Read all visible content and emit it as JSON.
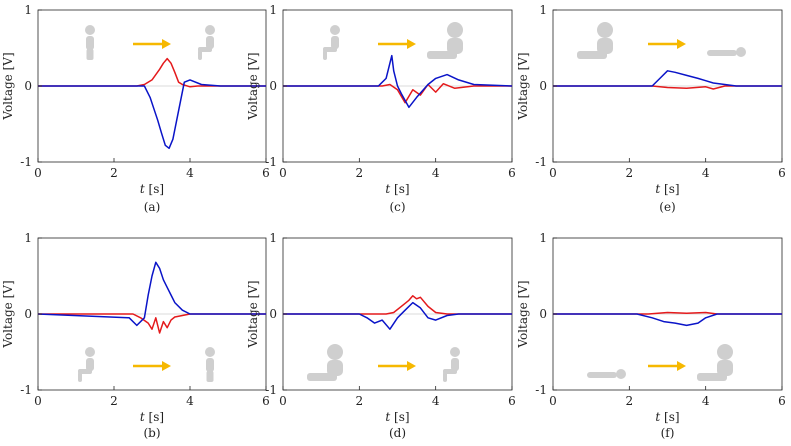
{
  "colors": {
    "series_a": "#e41a1c",
    "series_b": "#0a14c8",
    "arrow": "#f6b800",
    "figure": "#cfcfcf"
  },
  "chart_data": [
    {
      "type": "line",
      "panel": "a",
      "caption": "(a)",
      "xlabel": "t [s]",
      "ylabel": "Voltage [V]",
      "xlim": [
        0,
        6
      ],
      "ylim": [
        -1,
        1
      ],
      "xticks": [
        "0",
        "2",
        "4",
        "6"
      ],
      "yticks": [
        "-1",
        "0",
        "1"
      ],
      "grid": false,
      "illustration": {
        "from": "standing-figure",
        "to": "sitting-figure",
        "position": "top"
      },
      "series": [
        {
          "x": [
            0,
            2.6,
            2.8,
            3.0,
            3.2,
            3.3,
            3.4,
            3.5,
            3.6,
            3.7,
            3.8,
            4.0,
            4.2,
            4.6,
            6
          ],
          "values": [
            0,
            0,
            0.02,
            0.08,
            0.22,
            0.3,
            0.36,
            0.3,
            0.18,
            0.05,
            0.02,
            -0.01,
            0,
            0,
            0
          ]
        },
        {
          "x": [
            0,
            2.8,
            2.95,
            3.05,
            3.15,
            3.25,
            3.35,
            3.45,
            3.55,
            3.65,
            3.75,
            3.85,
            4.0,
            4.3,
            4.8,
            6
          ],
          "values": [
            0,
            0,
            -0.15,
            -0.3,
            -0.45,
            -0.62,
            -0.78,
            -0.82,
            -0.7,
            -0.45,
            -0.2,
            0.05,
            0.08,
            0.02,
            0,
            0
          ]
        }
      ]
    },
    {
      "type": "line",
      "panel": "b",
      "caption": "(b)",
      "xlabel": "t [s]",
      "ylabel": "Voltage [V]",
      "xlim": [
        0,
        6
      ],
      "ylim": [
        -1,
        1
      ],
      "xticks": [
        "0",
        "2",
        "4",
        "6"
      ],
      "yticks": [
        "-1",
        "0",
        "1"
      ],
      "grid": false,
      "illustration": {
        "from": "sitting-figure",
        "to": "standing-figure",
        "position": "bottom"
      },
      "series": [
        {
          "x": [
            0,
            2.5,
            2.7,
            2.9,
            3.0,
            3.1,
            3.2,
            3.3,
            3.4,
            3.5,
            3.6,
            3.8,
            4.0,
            6
          ],
          "values": [
            0,
            0,
            -0.05,
            -0.12,
            -0.2,
            -0.05,
            -0.25,
            -0.1,
            -0.18,
            -0.08,
            -0.04,
            -0.02,
            0,
            0
          ]
        },
        {
          "x": [
            0,
            2.4,
            2.6,
            2.8,
            2.9,
            3.0,
            3.1,
            3.2,
            3.3,
            3.4,
            3.5,
            3.6,
            3.8,
            4.0,
            6
          ],
          "values": [
            0,
            -0.05,
            -0.15,
            -0.05,
            0.25,
            0.5,
            0.68,
            0.6,
            0.45,
            0.35,
            0.25,
            0.15,
            0.05,
            0,
            0
          ]
        }
      ]
    },
    {
      "type": "line",
      "panel": "c",
      "caption": "(c)",
      "xlabel": "t [s]",
      "ylabel": "Voltage [V]",
      "xlim": [
        0,
        6
      ],
      "ylim": [
        -1,
        1
      ],
      "xticks": [
        "0",
        "2",
        "4",
        "6"
      ],
      "yticks": [
        "-1",
        "0",
        "1"
      ],
      "grid": false,
      "illustration": {
        "from": "sitting-figure",
        "to": "seated-legs-out-figure",
        "position": "top"
      },
      "series": [
        {
          "x": [
            0,
            2.6,
            2.8,
            3.0,
            3.2,
            3.4,
            3.6,
            3.8,
            4.0,
            4.2,
            4.5,
            5.0,
            6
          ],
          "values": [
            0,
            0,
            0.02,
            -0.05,
            -0.22,
            -0.05,
            -0.12,
            0.02,
            -0.08,
            0.03,
            -0.03,
            0,
            0
          ]
        },
        {
          "x": [
            0,
            2.5,
            2.7,
            2.8,
            2.85,
            2.9,
            3.0,
            3.1,
            3.3,
            3.5,
            3.8,
            4.0,
            4.3,
            4.6,
            5.0,
            6
          ],
          "values": [
            0,
            0,
            0.1,
            0.3,
            0.4,
            0.2,
            0,
            -0.1,
            -0.28,
            -0.15,
            0.02,
            0.1,
            0.15,
            0.08,
            0.02,
            0
          ]
        }
      ]
    },
    {
      "type": "line",
      "panel": "d",
      "caption": "(d)",
      "xlabel": "t [s]",
      "ylabel": "Voltage [V]",
      "xlim": [
        0,
        6
      ],
      "ylim": [
        -1,
        1
      ],
      "xticks": [
        "0",
        "2",
        "4",
        "6"
      ],
      "yticks": [
        "-1",
        "0",
        "1"
      ],
      "grid": false,
      "illustration": {
        "from": "seated-legs-out-figure",
        "to": "sitting-figure",
        "position": "bottom"
      },
      "series": [
        {
          "x": [
            0,
            2.7,
            2.9,
            3.1,
            3.3,
            3.4,
            3.5,
            3.6,
            3.8,
            4.0,
            4.3,
            6
          ],
          "values": [
            0,
            0,
            0.02,
            0.1,
            0.18,
            0.24,
            0.2,
            0.22,
            0.1,
            0.02,
            0,
            0
          ]
        },
        {
          "x": [
            0,
            2.0,
            2.2,
            2.4,
            2.6,
            2.8,
            3.0,
            3.2,
            3.4,
            3.6,
            3.8,
            4.0,
            4.3,
            4.6,
            6
          ],
          "values": [
            0,
            0,
            -0.05,
            -0.12,
            -0.08,
            -0.2,
            -0.05,
            0.05,
            0.15,
            0.08,
            -0.05,
            -0.08,
            -0.02,
            0,
            0
          ]
        }
      ]
    },
    {
      "type": "line",
      "panel": "e",
      "caption": "(e)",
      "xlabel": "t [s]",
      "ylabel": "Voltage [V]",
      "xlim": [
        0,
        6
      ],
      "ylim": [
        -1,
        1
      ],
      "xticks": [
        "0",
        "2",
        "4",
        "6"
      ],
      "yticks": [
        "-1",
        "0",
        "1"
      ],
      "grid": false,
      "illustration": {
        "from": "seated-legs-out-figure",
        "to": "lying-figure",
        "position": "top"
      },
      "series": [
        {
          "x": [
            0,
            2.6,
            3.0,
            3.5,
            4.0,
            4.2,
            4.5,
            6
          ],
          "values": [
            0,
            0,
            -0.02,
            -0.03,
            -0.01,
            -0.04,
            0,
            0
          ]
        },
        {
          "x": [
            0,
            2.6,
            2.8,
            3.0,
            3.2,
            3.5,
            3.8,
            4.0,
            4.2,
            4.5,
            4.8,
            6
          ],
          "values": [
            0,
            0,
            0.1,
            0.2,
            0.18,
            0.14,
            0.1,
            0.07,
            0.04,
            0.02,
            0,
            0
          ]
        }
      ]
    },
    {
      "type": "line",
      "panel": "f",
      "caption": "(f)",
      "xlabel": "t [s]",
      "ylabel": "Voltage [V]",
      "xlim": [
        0,
        6
      ],
      "ylim": [
        -1,
        1
      ],
      "xticks": [
        "0",
        "2",
        "4",
        "6"
      ],
      "yticks": [
        "-1",
        "0",
        "1"
      ],
      "grid": false,
      "illustration": {
        "from": "lying-figure",
        "to": "seated-legs-out-figure",
        "position": "bottom"
      },
      "series": [
        {
          "x": [
            0,
            2.5,
            3.0,
            3.5,
            4.0,
            4.3,
            6
          ],
          "values": [
            0,
            0,
            0.02,
            0.01,
            0.02,
            0,
            0
          ]
        },
        {
          "x": [
            0,
            2.2,
            2.6,
            2.9,
            3.2,
            3.5,
            3.8,
            4.0,
            4.3,
            6
          ],
          "values": [
            0,
            0,
            -0.05,
            -0.1,
            -0.12,
            -0.15,
            -0.12,
            -0.05,
            0,
            0
          ]
        }
      ]
    }
  ]
}
